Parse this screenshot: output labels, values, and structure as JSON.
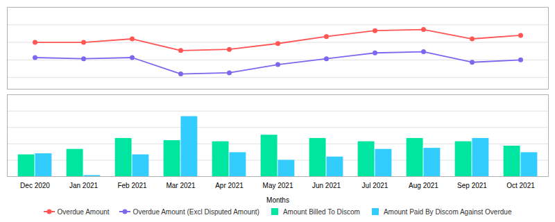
{
  "chart_data": [
    {
      "type": "line",
      "categories": [
        "Dec 2020",
        "Jan 2021",
        "Feb 2021",
        "Mar 2021",
        "Apr 2021",
        "May 2021",
        "Jun 2021",
        "Jul 2021",
        "Aug 2021",
        "Sep 2021",
        "Oct 2021"
      ],
      "series": [
        {
          "name": "Overdue Amount",
          "color": "#FF5555",
          "marker": "circle",
          "values": [
            8.5,
            8.5,
            8.8,
            7.8,
            7.9,
            8.4,
            9.0,
            9.5,
            9.6,
            8.8,
            9.1
          ]
        },
        {
          "name": "Overdue Amount (Excl Disputed Amount)",
          "color": "#7B68EE",
          "marker": "circle",
          "values": [
            7.2,
            7.1,
            7.2,
            5.8,
            5.9,
            6.6,
            7.1,
            7.6,
            7.7,
            6.8,
            7.0
          ]
        }
      ],
      "ylim": [
        4.5,
        11.5
      ],
      "yticks": [
        5.5,
        7.0,
        8.5,
        10.0
      ],
      "grid": true,
      "tick_labels": false,
      "legend": "bottom"
    },
    {
      "type": "bar",
      "categories": [
        "Dec 2020",
        "Jan 2021",
        "Feb 2021",
        "Mar 2021",
        "Apr 2021",
        "May 2021",
        "Jun 2021",
        "Jul 2021",
        "Aug 2021",
        "Sep 2021",
        "Oct 2021"
      ],
      "xlabel": "Months",
      "series": [
        {
          "name": "Amount Billed To Discom",
          "color": "#00E5A0",
          "values": [
            2.0,
            2.5,
            3.5,
            3.3,
            3.2,
            3.8,
            3.5,
            3.2,
            3.5,
            3.2,
            2.8
          ]
        },
        {
          "name": "Amount Paid By Discom Against Overdue",
          "color": "#33CCFF",
          "values": [
            2.1,
            0.1,
            2.0,
            5.5,
            2.2,
            1.5,
            1.8,
            2.5,
            2.6,
            3.5,
            2.2
          ]
        }
      ],
      "ylim": [
        0,
        7.5
      ],
      "yticks": [
        1.5,
        3.0,
        4.5,
        6.0
      ],
      "grid": true,
      "tick_labels": "x",
      "legend": "bottom"
    }
  ]
}
